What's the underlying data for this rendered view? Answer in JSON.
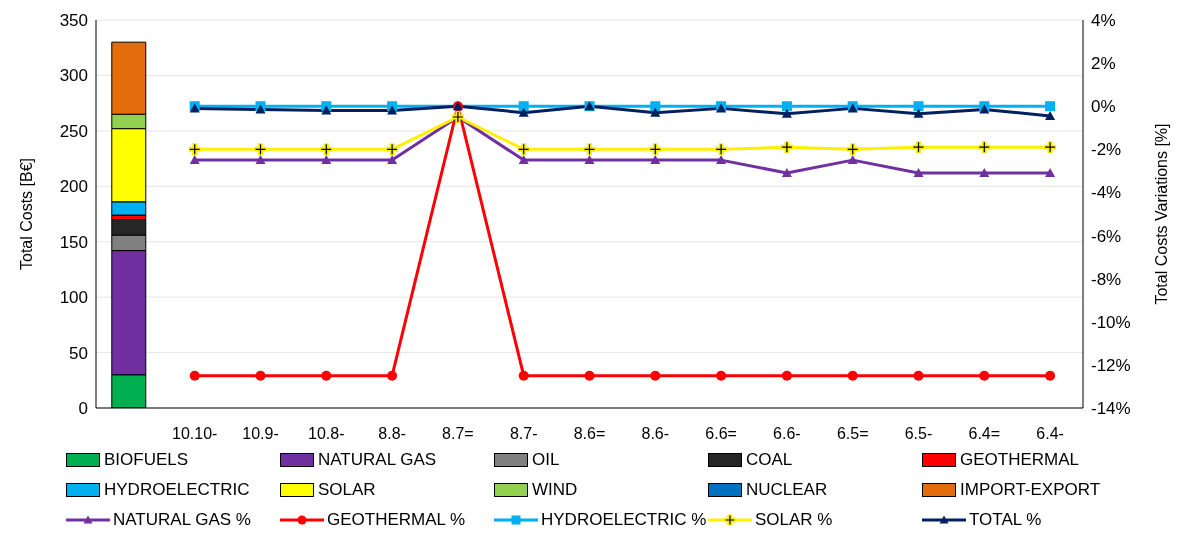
{
  "chart_data": {
    "type": "bar",
    "stacked": true,
    "ylabel": "Total Costs [B€]",
    "y2label": "Total Costs Variations [%]",
    "categories": [
      null,
      "10.10-",
      "10.9-",
      "10.8-",
      "8.8-",
      "8.7=",
      "8.7-",
      "8.6=",
      "8.6-",
      "6.6=",
      "6.6-",
      "6.5=",
      "6.5-",
      "6.4=",
      "6.4-"
    ],
    "ylim": [
      0,
      350
    ],
    "yticks": [
      0,
      50,
      100,
      150,
      200,
      250,
      300,
      350
    ],
    "y2lim": [
      -14,
      4
    ],
    "y2ticks": [
      {
        "value": -14,
        "label": "-14%"
      },
      {
        "value": -12,
        "label": "-12%"
      },
      {
        "value": -10,
        "label": "-10%"
      },
      {
        "value": -8,
        "label": "-8%"
      },
      {
        "value": -6,
        "label": "-6%"
      },
      {
        "value": -4,
        "label": "-4%"
      },
      {
        "value": -2,
        "label": "-2%"
      },
      {
        "value": 0,
        "label": "0%"
      },
      {
        "value": 2,
        "label": "2%"
      },
      {
        "value": 4,
        "label": "4%"
      }
    ],
    "grid": "y",
    "legend": "bottom",
    "series": [
      {
        "name": "BIOFUELS",
        "color": "#00b050",
        "values": [
          30,
          null,
          null,
          null,
          null,
          null,
          null,
          null,
          null,
          null,
          null,
          null,
          null,
          null,
          null
        ]
      },
      {
        "name": "NATURAL GAS",
        "color": "#7030a0",
        "values": [
          112,
          null,
          null,
          null,
          null,
          null,
          null,
          null,
          null,
          null,
          null,
          null,
          null,
          null,
          null
        ]
      },
      {
        "name": "OIL",
        "color": "#808080",
        "values": [
          14,
          null,
          null,
          null,
          null,
          null,
          null,
          null,
          null,
          null,
          null,
          null,
          null,
          null,
          null
        ]
      },
      {
        "name": "COAL",
        "color": "#262626",
        "values": [
          14,
          null,
          null,
          null,
          null,
          null,
          null,
          null,
          null,
          null,
          null,
          null,
          null,
          null,
          null
        ]
      },
      {
        "name": "GEOTHERMAL",
        "color": "#ff0000",
        "values": [
          4,
          null,
          null,
          null,
          null,
          null,
          null,
          null,
          null,
          null,
          null,
          null,
          null,
          null,
          null
        ]
      },
      {
        "name": "HYDROELECTRIC",
        "color": "#00b0f0",
        "values": [
          12,
          null,
          null,
          null,
          null,
          null,
          null,
          null,
          null,
          null,
          null,
          null,
          null,
          null,
          null
        ]
      },
      {
        "name": "SOLAR",
        "color": "#ffff00",
        "values": [
          66,
          null,
          null,
          null,
          null,
          null,
          null,
          null,
          null,
          null,
          null,
          null,
          null,
          null,
          null
        ]
      },
      {
        "name": "WIND",
        "color": "#92d050",
        "values": [
          13,
          null,
          null,
          null,
          null,
          null,
          null,
          null,
          null,
          null,
          null,
          null,
          null,
          null,
          null
        ]
      },
      {
        "name": "NUCLEAR",
        "color": "#0070c0",
        "values": [
          0,
          null,
          null,
          null,
          null,
          null,
          null,
          null,
          null,
          null,
          null,
          null,
          null,
          null,
          null
        ]
      },
      {
        "name": "IMPORT-EXPORT",
        "color": "#e46c0a",
        "values": [
          65,
          null,
          null,
          null,
          null,
          null,
          null,
          null,
          null,
          null,
          null,
          null,
          null,
          null,
          null
        ]
      },
      {
        "name": "NATURAL GAS %",
        "type": "line",
        "axis": "y2",
        "marker": "triangle",
        "color": "#7030a0",
        "values": [
          null,
          -2.5,
          -2.5,
          -2.5,
          -2.5,
          -0.5,
          -2.5,
          -2.5,
          -2.5,
          -2.5,
          -3.1,
          -2.5,
          -3.1,
          -3.1,
          -3.1
        ]
      },
      {
        "name": "GEOTHERMAL %",
        "type": "line",
        "axis": "y2",
        "marker": "circle",
        "color": "#ff0000",
        "values": [
          null,
          -12.5,
          -12.5,
          -12.5,
          -12.5,
          0,
          -12.5,
          -12.5,
          -12.5,
          -12.5,
          -12.5,
          -12.5,
          -12.5,
          -12.5,
          -12.5
        ]
      },
      {
        "name": "HYDROELECTRIC %",
        "type": "line",
        "axis": "y2",
        "marker": "square",
        "color": "#00b0f0",
        "values": [
          null,
          0,
          0,
          0,
          0,
          null,
          0,
          0,
          0,
          0,
          0,
          0,
          0,
          0,
          0
        ]
      },
      {
        "name": "SOLAR %",
        "type": "line",
        "axis": "y2",
        "marker": "cross",
        "color": "#ffef00",
        "values": [
          null,
          -2,
          -2,
          -2,
          -2,
          -0.5,
          -2,
          -2,
          -2,
          -2,
          -1.9,
          -2,
          -1.9,
          -1.9,
          -1.9
        ]
      },
      {
        "name": "TOTAL %",
        "type": "line",
        "axis": "y2",
        "marker": "triangle",
        "color": "#002060",
        "values": [
          null,
          -0.1,
          -0.15,
          -0.2,
          -0.2,
          0,
          -0.3,
          0,
          -0.3,
          -0.1,
          -0.35,
          -0.1,
          -0.35,
          -0.15,
          -0.45
        ]
      }
    ]
  }
}
